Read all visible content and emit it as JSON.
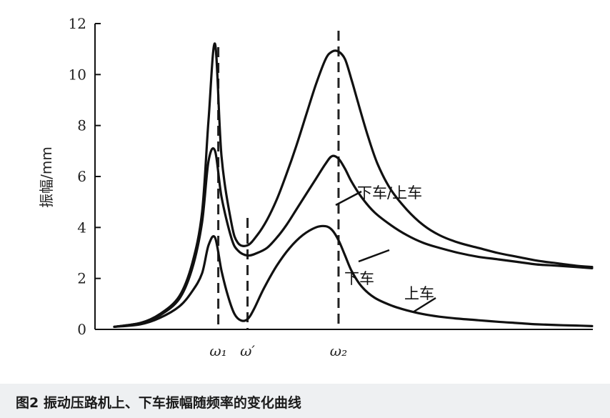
{
  "caption": "图2  振动压路机上、下车振幅随频率的变化曲线",
  "chart_data": {
    "type": "line",
    "xlabel": "",
    "ylabel": "振幅/mm",
    "ylim": [
      0,
      12
    ],
    "yticks": [
      "0",
      "2",
      "4",
      "6",
      "8",
      "10",
      "12"
    ],
    "x_markers": [
      {
        "label": "ω₁",
        "x": 0.32
      },
      {
        "label": "ω′",
        "x": 0.41
      },
      {
        "label": "ω₂",
        "x": 0.69
      }
    ],
    "grid": false,
    "series": [
      {
        "name": "下车/上车",
        "x": [
          0.0,
          0.08,
          0.14,
          0.2,
          0.24,
          0.27,
          0.29,
          0.31,
          0.33,
          0.36,
          0.38,
          0.41,
          0.44,
          0.47,
          0.5,
          0.53,
          0.56,
          0.59,
          0.62,
          0.65,
          0.67,
          0.69,
          0.71,
          0.73,
          0.75,
          0.78,
          0.81,
          0.85,
          0.9,
          0.95,
          1.0,
          1.06,
          1.12,
          1.18,
          1.24,
          1.3,
          1.36,
          1.42,
          1.47
        ],
        "y": [
          0.1,
          0.25,
          0.6,
          1.3,
          2.6,
          4.6,
          8.2,
          11.2,
          6.8,
          4.2,
          3.4,
          3.3,
          3.7,
          4.3,
          5.1,
          6.1,
          7.2,
          8.4,
          9.6,
          10.6,
          10.9,
          10.9,
          10.6,
          9.8,
          8.9,
          7.6,
          6.5,
          5.5,
          4.7,
          4.1,
          3.7,
          3.4,
          3.2,
          3.0,
          2.85,
          2.7,
          2.6,
          2.5,
          2.45
        ]
      },
      {
        "name": "下车",
        "x": [
          0.0,
          0.08,
          0.14,
          0.2,
          0.24,
          0.27,
          0.29,
          0.31,
          0.33,
          0.36,
          0.38,
          0.41,
          0.44,
          0.47,
          0.5,
          0.53,
          0.56,
          0.59,
          0.62,
          0.65,
          0.67,
          0.69,
          0.71,
          0.73,
          0.76,
          0.8,
          0.85,
          0.9,
          0.95,
          1.0,
          1.06,
          1.12,
          1.18,
          1.24,
          1.3,
          1.36,
          1.42,
          1.47
        ],
        "y": [
          0.1,
          0.25,
          0.55,
          1.2,
          2.4,
          4.2,
          6.6,
          7.0,
          5.2,
          3.6,
          3.1,
          2.9,
          3.0,
          3.2,
          3.6,
          4.1,
          4.7,
          5.3,
          5.9,
          6.5,
          6.8,
          6.7,
          6.3,
          5.8,
          5.2,
          4.6,
          4.1,
          3.7,
          3.4,
          3.2,
          3.0,
          2.85,
          2.75,
          2.65,
          2.55,
          2.5,
          2.45,
          2.4
        ]
      },
      {
        "name": "上车",
        "x": [
          0.0,
          0.08,
          0.14,
          0.2,
          0.24,
          0.27,
          0.29,
          0.31,
          0.33,
          0.35,
          0.37,
          0.39,
          0.41,
          0.43,
          0.46,
          0.5,
          0.54,
          0.58,
          0.62,
          0.65,
          0.67,
          0.69,
          0.71,
          0.73,
          0.76,
          0.8,
          0.85,
          0.9,
          0.95,
          1.0,
          1.06,
          1.12,
          1.18,
          1.24,
          1.3,
          1.36,
          1.42,
          1.47
        ],
        "y": [
          0.1,
          0.2,
          0.45,
          0.9,
          1.5,
          2.2,
          3.3,
          3.6,
          2.3,
          1.3,
          0.6,
          0.35,
          0.4,
          0.8,
          1.6,
          2.5,
          3.2,
          3.7,
          4.0,
          4.05,
          3.9,
          3.5,
          2.9,
          2.3,
          1.7,
          1.25,
          0.95,
          0.75,
          0.6,
          0.5,
          0.42,
          0.36,
          0.3,
          0.25,
          0.2,
          0.17,
          0.15,
          0.13
        ]
      }
    ]
  }
}
